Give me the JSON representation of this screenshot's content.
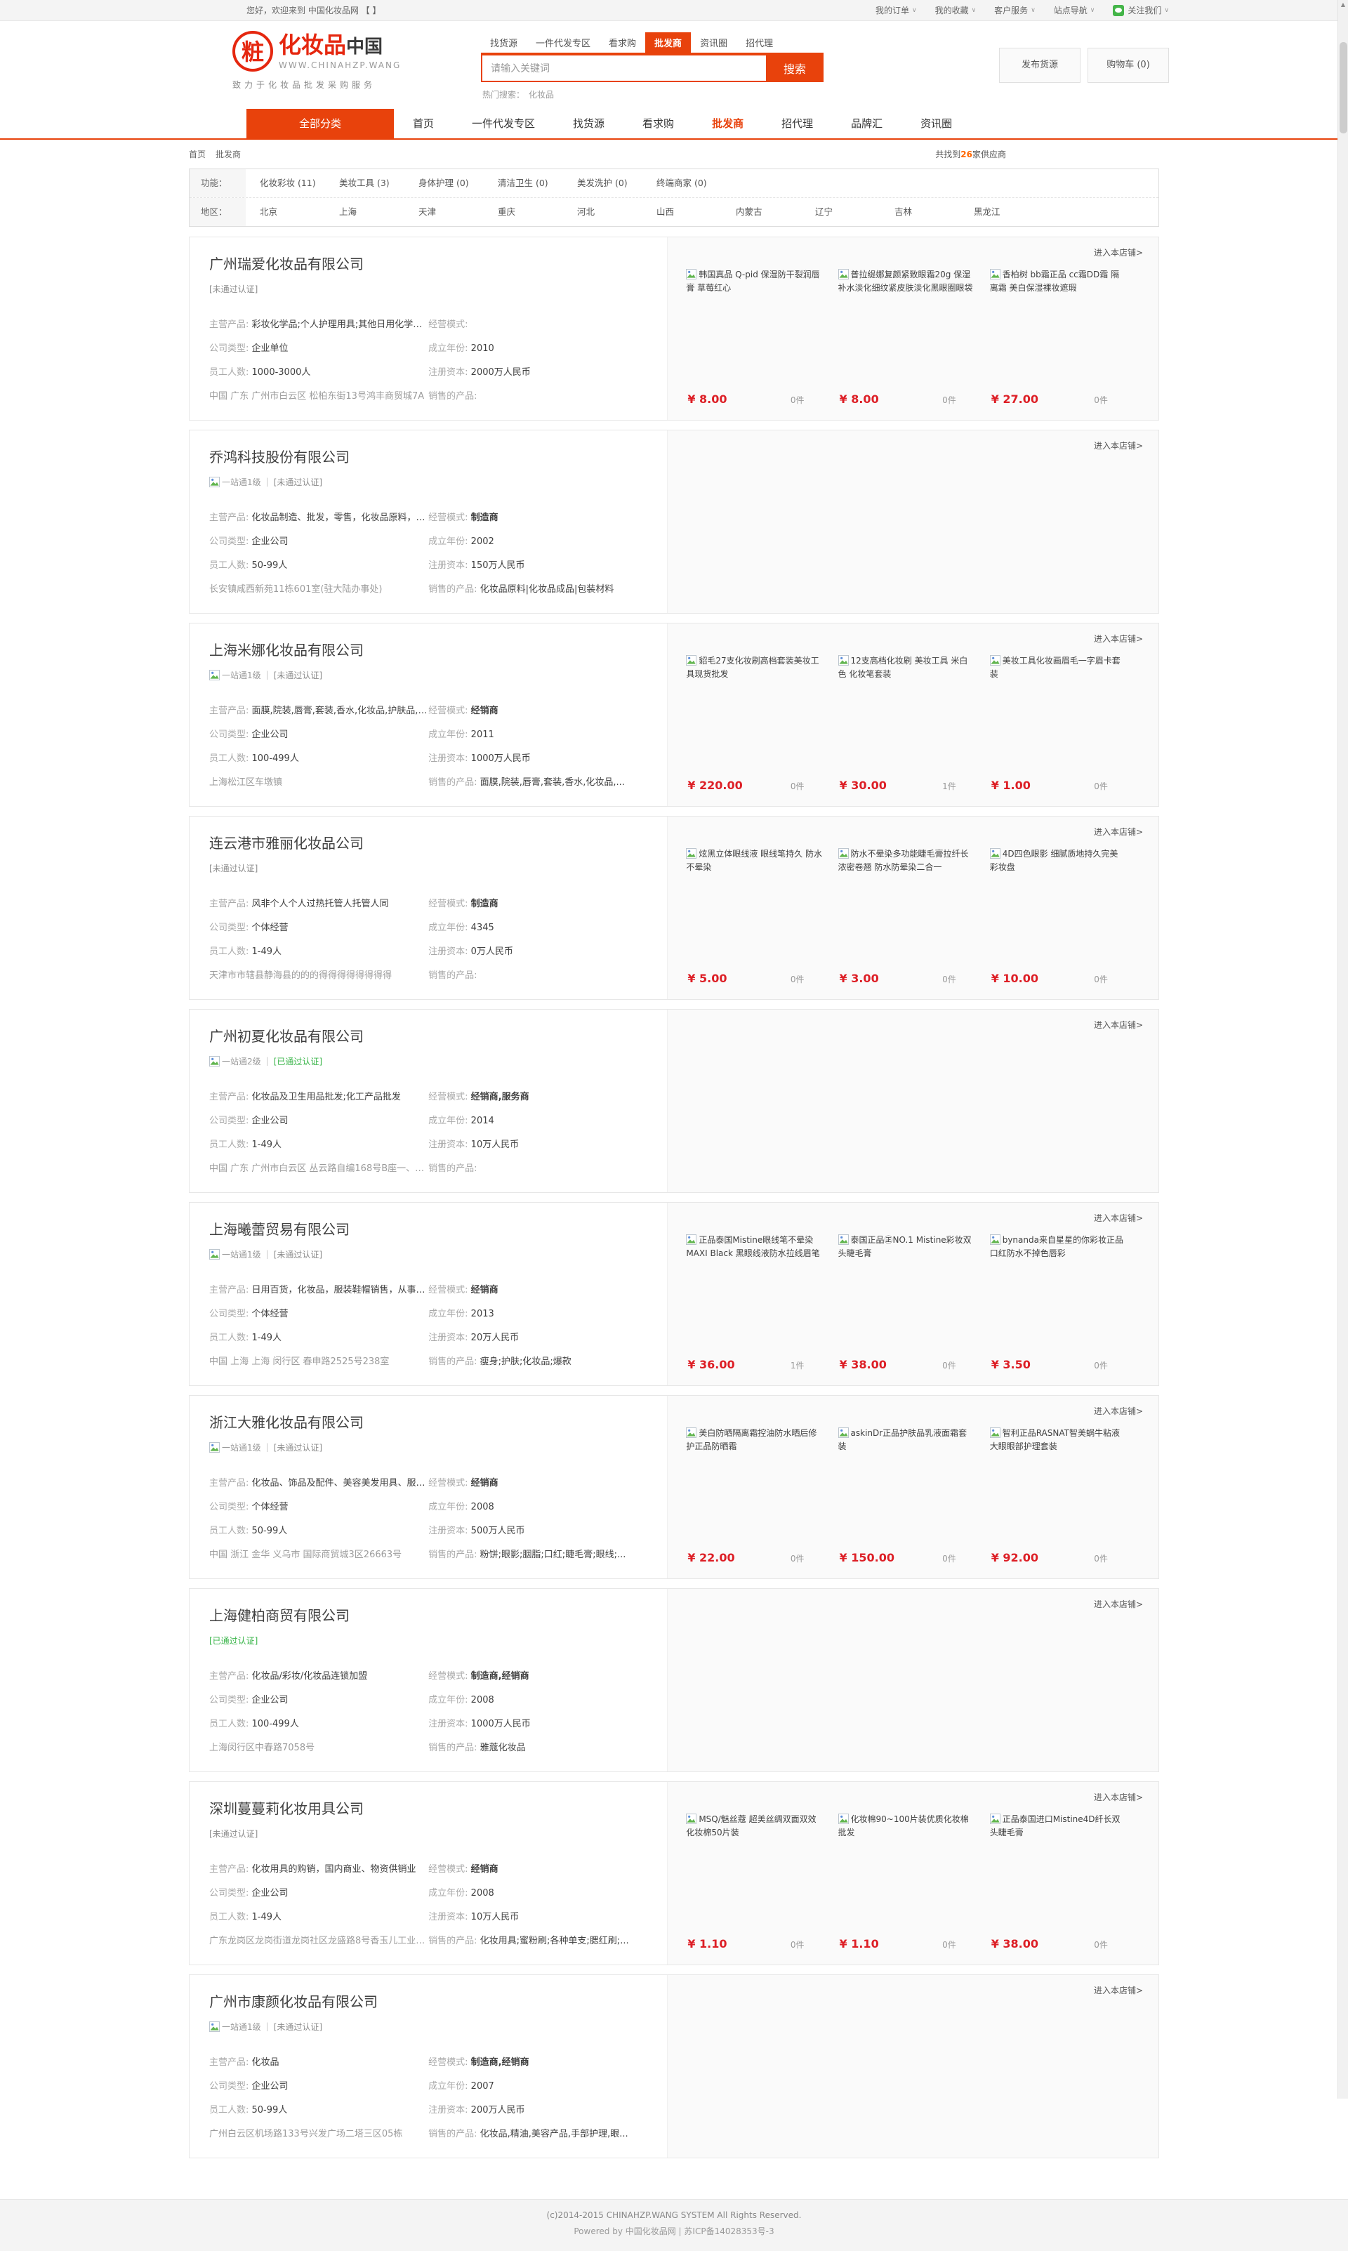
{
  "colors": {
    "accent": "#e8420c",
    "price_red": "#dd1f26",
    "cert_green": "#39b549",
    "count_orange": "#ff6600"
  },
  "topbar": {
    "welcome": "您好，欢迎来到 中国化妆品网 【 】",
    "menus": [
      "我的订单",
      "我的收藏",
      "客户服务",
      "站点导航",
      "关注我们"
    ]
  },
  "header": {
    "logo": {
      "emblem": "粧",
      "title_red": "化妆品",
      "title_dark": "中国",
      "sub": "WWW.CHINAHZP.WANG",
      "tagline": "致力于化妆品批发采购服务"
    },
    "mini_nav": [
      {
        "label": "找货源",
        "active": false
      },
      {
        "label": "一件代发专区",
        "active": false
      },
      {
        "label": "看求购",
        "active": false
      },
      {
        "label": "批发商",
        "active": true
      },
      {
        "label": "资讯圈",
        "active": false
      },
      {
        "label": "招代理",
        "active": false
      }
    ],
    "search": {
      "placeholder": "请输入关键词",
      "button": "搜索",
      "hot_label": "热门搜索：",
      "hot_term": "化妆品"
    },
    "actions": [
      "发布货源",
      "购物车 (0)"
    ]
  },
  "nav": {
    "all_label": "全部分类",
    "items": [
      {
        "label": "首页",
        "active": false
      },
      {
        "label": "一件代发专区",
        "active": false
      },
      {
        "label": "找货源",
        "active": false
      },
      {
        "label": "看求购",
        "active": false
      },
      {
        "label": "批发商",
        "active": true
      },
      {
        "label": "招代理",
        "active": false
      },
      {
        "label": "品牌汇",
        "active": false
      },
      {
        "label": "资讯圈",
        "active": false
      }
    ]
  },
  "breadcrumb": {
    "links": [
      "首页",
      "批发商"
    ],
    "result_prefix": "共找到",
    "result_count": "26",
    "result_suffix": "家供应商"
  },
  "filters": [
    {
      "label": "功能：",
      "options": [
        "化妆彩妆 (11)",
        "美妆工具 (3)",
        "身体护理 (0)",
        "清洁卫生 (0)",
        "美发洗护 (0)",
        "终端商家 (0)"
      ]
    },
    {
      "label": "地区：",
      "options": [
        "北京",
        "上海",
        "天津",
        "重庆",
        "河北",
        "山西",
        "内蒙古",
        "辽宁",
        "吉林",
        "黑龙江"
      ]
    }
  ],
  "shop_link": "进入本店铺>",
  "suppliers": [
    {
      "name": "广州瑞爱化妆品有限公司",
      "level": "",
      "cert": "[未通过认证]",
      "cert_ok": false,
      "info_left": [
        [
          "主营产品:",
          "彩妆化学品;个人护理用具;其他日用化学品;洗..."
        ],
        [
          "公司类型:",
          "企业单位"
        ],
        [
          "员工人数:",
          "1000-3000人"
        ]
      ],
      "address": "中国 广东 广州市白云区 松柏东街13号鸿丰商贸城7A",
      "info_right": [
        [
          "经营模式:",
          ""
        ],
        [
          "成立年份:",
          "2010"
        ],
        [
          "注册资本:",
          "2000万人民币"
        ],
        [
          "销售的产品:",
          ""
        ]
      ],
      "products": [
        {
          "title": "韩国真品 Q-pid 保湿防干裂润唇膏 草莓红心",
          "price": "¥ 8.00",
          "count": "0件"
        },
        {
          "title": "普拉缇娜复颜紧致眼霜20g 保湿补水淡化细纹紧皮肤淡化黑眼圈眼袋",
          "price": "¥ 8.00",
          "count": "0件"
        },
        {
          "title": "香柏树 bb霜正品 cc霜DD霜 隔离霜 美白保湿裸妆遮瑕",
          "price": "¥ 27.00",
          "count": "0件"
        }
      ]
    },
    {
      "name": "乔鸿科技股份有限公司",
      "level": "一站通1级",
      "cert": "[未通过认证]",
      "cert_ok": false,
      "info_left": [
        [
          "主营产品:",
          "化妆品制造、批发，零售，化妆品原料，化妆..."
        ],
        [
          "公司类型:",
          "企业公司"
        ],
        [
          "员工人数:",
          "50-99人"
        ]
      ],
      "address": "长安镇咸西新苑11栋601室(驻大陆办事处)",
      "info_right": [
        [
          "经营模式:",
          "制造商"
        ],
        [
          "成立年份:",
          "2002"
        ],
        [
          "注册资本:",
          "150万人民币"
        ],
        [
          "销售的产品:",
          "化妆品原料|化妆品成品|包装材料"
        ]
      ],
      "products": []
    },
    {
      "name": "上海米娜化妆品有限公司",
      "level": "一站通1级",
      "cert": "[未通过认证]",
      "cert_ok": false,
      "info_left": [
        [
          "主营产品:",
          "面膜,院装,唇膏,套装,香水,化妆品,护肤品,彩..."
        ],
        [
          "公司类型:",
          "企业公司"
        ],
        [
          "员工人数:",
          "100-499人"
        ]
      ],
      "address": "上海松江区车墩镇",
      "info_right": [
        [
          "经营模式:",
          "经销商"
        ],
        [
          "成立年份:",
          "2011"
        ],
        [
          "注册资本:",
          "1000万人民币"
        ],
        [
          "销售的产品:",
          "面膜,院装,唇膏,套装,香水,化妆品,..."
        ]
      ],
      "products": [
        {
          "title": "貂毛27支化妆刷高档套装美妆工具现货批发",
          "price": "¥ 220.00",
          "count": "0件"
        },
        {
          "title": "12支高档化妆刷 美妆工具 米白色 化妆笔套装",
          "price": "¥ 30.00",
          "count": "1件"
        },
        {
          "title": "美妆工具化妆画眉毛一字眉卡套装",
          "price": "¥ 1.00",
          "count": "0件"
        }
      ]
    },
    {
      "name": "连云港市雅丽化妆品公司",
      "level": "",
      "cert": "[未通过认证]",
      "cert_ok": false,
      "info_left": [
        [
          "主营产品:",
          "风非个人个人过热托管人托管人同"
        ],
        [
          "公司类型:",
          "个体经营"
        ],
        [
          "员工人数:",
          "1-49人"
        ]
      ],
      "address": "天津市市辖县静海县的的的得得得得得得得得",
      "info_right": [
        [
          "经营模式:",
          "制造商"
        ],
        [
          "成立年份:",
          "4345"
        ],
        [
          "注册资本:",
          "0万人民币"
        ],
        [
          "销售的产品:",
          ""
        ]
      ],
      "products": [
        {
          "title": "炫黑立体眼线液 眼线笔持久 防水不晕染",
          "price": "¥ 5.00",
          "count": "0件"
        },
        {
          "title": "防水不晕染多功能睫毛膏拉纤长浓密卷翘 防水防晕染二合一",
          "price": "¥ 3.00",
          "count": "0件"
        },
        {
          "title": "4D四色眼影 细腻质地持久完美彩妆盘",
          "price": "¥ 10.00",
          "count": "0件"
        }
      ]
    },
    {
      "name": "广州初夏化妆品有限公司",
      "level": "一站通2级",
      "cert": "[已通过认证]",
      "cert_ok": true,
      "info_left": [
        [
          "主营产品:",
          "化妆品及卫生用品批发;化工产品批发"
        ],
        [
          "公司类型:",
          "企业公司"
        ],
        [
          "员工人数:",
          "1-49人"
        ]
      ],
      "address": "中国 广东 广州市白云区 丛云路自编168号B座一、二层",
      "info_right": [
        [
          "经营模式:",
          "经销商,服务商"
        ],
        [
          "成立年份:",
          "2014"
        ],
        [
          "注册资本:",
          "10万人民币"
        ],
        [
          "销售的产品:",
          ""
        ]
      ],
      "products": []
    },
    {
      "name": "上海曦蕾贸易有限公司",
      "level": "一站通1级",
      "cert": "[未通过认证]",
      "cert_ok": false,
      "info_left": [
        [
          "主营产品:",
          "日用百货，化妆品，服装鞋帽销售，从事货物..."
        ],
        [
          "公司类型:",
          "个体经营"
        ],
        [
          "员工人数:",
          "1-49人"
        ]
      ],
      "address": "中国 上海 上海 闵行区 春申路2525号238室",
      "info_right": [
        [
          "经营模式:",
          "经销商"
        ],
        [
          "成立年份:",
          "2013"
        ],
        [
          "注册资本:",
          "20万人民币"
        ],
        [
          "销售的产品:",
          "瘦身;护肤;化妆品;爆款"
        ]
      ],
      "products": [
        {
          "title": "正品泰国Mistine眼线笔不晕染 MAXI Black 黑眼线液防水拉线眉笔",
          "price": "¥ 36.00",
          "count": "1件"
        },
        {
          "title": "泰国正品㊣NO.1 Mistine彩妆双头睫毛膏",
          "price": "¥ 38.00",
          "count": "0件"
        },
        {
          "title": "bynanda来自星星的你彩妆正品 口红防水不掉色唇彩",
          "price": "¥ 3.50",
          "count": "0件"
        }
      ]
    },
    {
      "name": "浙江大雅化妆品有限公司",
      "level": "一站通1级",
      "cert": "[未通过认证]",
      "cert_ok": false,
      "info_left": [
        [
          "主营产品:",
          "化妆品、饰品及配件、美容美发用具、服装批..."
        ],
        [
          "公司类型:",
          "个体经营"
        ],
        [
          "员工人数:",
          "50-99人"
        ]
      ],
      "address": "中国 浙江 金华 义乌市 国际商贸城3区26663号",
      "info_right": [
        [
          "经营模式:",
          "经销商"
        ],
        [
          "成立年份:",
          "2008"
        ],
        [
          "注册资本:",
          "500万人民币"
        ],
        [
          "销售的产品:",
          "粉饼;眼影;胭脂;口红;睫毛膏;眼线;..."
        ]
      ],
      "products": [
        {
          "title": "美白防晒隔离霜控油防水晒后修护正品防晒霜",
          "price": "¥ 22.00",
          "count": "0件"
        },
        {
          "title": "askinDr正品护肤品乳液面霜套装",
          "price": "¥ 150.00",
          "count": "0件"
        },
        {
          "title": "智利正品RASNAT智美蜗牛粘液大眼眼部护理套装",
          "price": "¥ 92.00",
          "count": "0件"
        }
      ]
    },
    {
      "name": "上海健柏商贸有限公司",
      "level": "",
      "cert": "[已通过认证]",
      "cert_ok": true,
      "info_left": [
        [
          "主营产品:",
          "化妆品/彩妆/化妆品连锁加盟"
        ],
        [
          "公司类型:",
          "企业公司"
        ],
        [
          "员工人数:",
          "100-499人"
        ]
      ],
      "address": "上海闵行区中春路7058号",
      "info_right": [
        [
          "经营模式:",
          "制造商,经销商"
        ],
        [
          "成立年份:",
          "2008"
        ],
        [
          "注册资本:",
          "1000万人民币"
        ],
        [
          "销售的产品:",
          "雅蔻化妆品"
        ]
      ],
      "products": []
    },
    {
      "name": "深圳蔓蔓莉化妆用具公司",
      "level": "",
      "cert": "[未通过认证]",
      "cert_ok": false,
      "info_left": [
        [
          "主营产品:",
          "化妆用具的购销，国内商业、物资供销业"
        ],
        [
          "公司类型:",
          "企业公司"
        ],
        [
          "员工人数:",
          "1-49人"
        ]
      ],
      "address": "广东龙岗区龙岗街道龙岗社区龙盛路8号香玉儿工业厂区1C",
      "info_right": [
        [
          "经营模式:",
          "经销商"
        ],
        [
          "成立年份:",
          "2008"
        ],
        [
          "注册资本:",
          "10万人民币"
        ],
        [
          "销售的产品:",
          "化妆用具;蜜粉刷;各种单支;腮红刷;..."
        ]
      ],
      "products": [
        {
          "title": "MSQ/魅丝蔻 超美丝绸双面双效化妆棉50片装",
          "price": "¥ 1.10",
          "count": "0件"
        },
        {
          "title": "化妆棉90~100片装优质化妆棉批发",
          "price": "¥ 1.10",
          "count": "0件"
        },
        {
          "title": "正品泰国进口Mistine4D纤长双头睫毛膏",
          "price": "¥ 38.00",
          "count": "0件"
        }
      ]
    },
    {
      "name": "广州市康颜化妆品有限公司",
      "level": "一站通1级",
      "cert": "[未通过认证]",
      "cert_ok": false,
      "info_left": [
        [
          "主营产品:",
          "化妆品"
        ],
        [
          "公司类型:",
          "企业公司"
        ],
        [
          "员工人数:",
          "50-99人"
        ]
      ],
      "address": "广州白云区机场路133号兴发广场二塔三区05栋",
      "info_right": [
        [
          "经营模式:",
          "制造商,经销商"
        ],
        [
          "成立年份:",
          "2007"
        ],
        [
          "注册资本:",
          "200万人民币"
        ],
        [
          "销售的产品:",
          "化妆品,精油,美容产品,手部护理,眼..."
        ]
      ],
      "products": []
    }
  ],
  "footer": {
    "line1": "(c)2014-2015 CHINAHZP.WANG SYSTEM All Rights Reserved.",
    "line2": "Powered by 中国化妆品网 | 苏ICP备14028353号-3"
  }
}
